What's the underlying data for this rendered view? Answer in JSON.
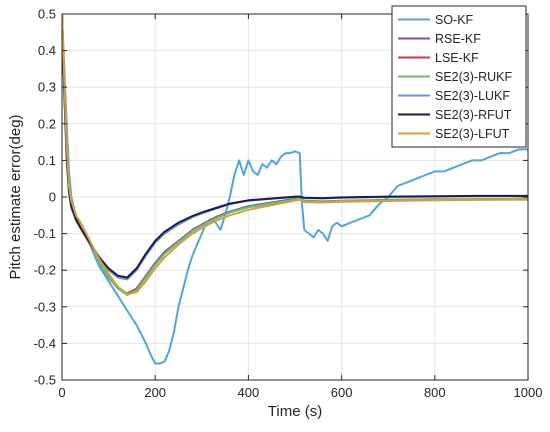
{
  "chart_data": {
    "type": "line",
    "title": "",
    "xlabel": "Time (s)",
    "ylabel": "Pitch estimate error(deg)",
    "xlim": [
      0,
      1000
    ],
    "ylim": [
      -0.5,
      0.5
    ],
    "xticks": [
      0,
      200,
      400,
      600,
      800,
      1000
    ],
    "yticks": [
      -0.5,
      -0.4,
      -0.3,
      -0.2,
      -0.1,
      0,
      0.1,
      0.2,
      0.3,
      0.4,
      0.5
    ],
    "xtick_labels": [
      "0",
      "200",
      "400",
      "600",
      "800",
      "1000"
    ],
    "ytick_labels": [
      "-0.5",
      "-0.4",
      "-0.3",
      "-0.2",
      "-0.1",
      "0",
      "0.1",
      "0.2",
      "0.3",
      "0.4",
      "0.5"
    ],
    "grid": true,
    "legend_position": "top-right",
    "series": [
      {
        "name": "SO-KF",
        "color": "#4DA6E0",
        "x": [
          0,
          5,
          10,
          15,
          20,
          30,
          40,
          50,
          60,
          70,
          80,
          100,
          120,
          140,
          160,
          180,
          190,
          200,
          210,
          220,
          230,
          240,
          250,
          260,
          270,
          280,
          290,
          300,
          310,
          320,
          330,
          340,
          350,
          360,
          370,
          380,
          390,
          400,
          410,
          420,
          430,
          440,
          450,
          460,
          470,
          480,
          490,
          500,
          510,
          515,
          520,
          530,
          540,
          550,
          560,
          570,
          580,
          590,
          600,
          620,
          640,
          660,
          680,
          700,
          720,
          740,
          760,
          780,
          800,
          820,
          840,
          860,
          880,
          900,
          920,
          940,
          960,
          980,
          990,
          1000
        ],
        "values": [
          0.5,
          0.35,
          0.2,
          0.07,
          0.0,
          -0.05,
          -0.08,
          -0.1,
          -0.13,
          -0.16,
          -0.19,
          -0.23,
          -0.27,
          -0.31,
          -0.35,
          -0.4,
          -0.43,
          -0.455,
          -0.455,
          -0.45,
          -0.42,
          -0.37,
          -0.3,
          -0.25,
          -0.2,
          -0.16,
          -0.13,
          -0.1,
          -0.07,
          -0.06,
          -0.07,
          -0.09,
          -0.05,
          0.0,
          0.06,
          0.1,
          0.06,
          0.1,
          0.07,
          0.06,
          0.09,
          0.08,
          0.1,
          0.09,
          0.11,
          0.12,
          0.12,
          0.125,
          0.12,
          -0.02,
          -0.09,
          -0.1,
          -0.11,
          -0.09,
          -0.1,
          -0.12,
          -0.08,
          -0.07,
          -0.08,
          -0.07,
          -0.06,
          -0.05,
          -0.02,
          0.0,
          0.03,
          0.04,
          0.05,
          0.06,
          0.07,
          0.07,
          0.08,
          0.09,
          0.1,
          0.1,
          0.11,
          0.12,
          0.12,
          0.13,
          0.13,
          0.13
        ]
      },
      {
        "name": "RSE-KF",
        "color": "#7E4FB0",
        "x": [
          0,
          5,
          10,
          15,
          20,
          30,
          40,
          60,
          80,
          100,
          120,
          140,
          160,
          180,
          200,
          220,
          250,
          280,
          300,
          330,
          360,
          400,
          450,
          500,
          510,
          520,
          560,
          600,
          700,
          800,
          900,
          1000
        ],
        "values": [
          0.5,
          0.3,
          0.12,
          0.02,
          -0.02,
          -0.06,
          -0.08,
          -0.13,
          -0.18,
          -0.22,
          -0.25,
          -0.265,
          -0.25,
          -0.215,
          -0.18,
          -0.15,
          -0.12,
          -0.09,
          -0.075,
          -0.055,
          -0.04,
          -0.025,
          -0.015,
          -0.005,
          -0.003,
          -0.01,
          -0.012,
          -0.01,
          -0.008,
          -0.006,
          -0.006,
          -0.005
        ]
      },
      {
        "name": "LSE-KF",
        "color": "#D6334F",
        "x": [
          0,
          5,
          10,
          15,
          20,
          30,
          40,
          60,
          80,
          100,
          120,
          140,
          160,
          180,
          200,
          220,
          250,
          280,
          300,
          330,
          360,
          400,
          450,
          500,
          510,
          520,
          560,
          600,
          700,
          800,
          900,
          1000
        ],
        "values": [
          0.5,
          0.31,
          0.13,
          0.025,
          -0.015,
          -0.055,
          -0.075,
          -0.125,
          -0.175,
          -0.215,
          -0.248,
          -0.263,
          -0.252,
          -0.22,
          -0.185,
          -0.155,
          -0.123,
          -0.093,
          -0.078,
          -0.058,
          -0.042,
          -0.028,
          -0.017,
          -0.007,
          -0.004,
          -0.011,
          -0.013,
          -0.011,
          -0.009,
          -0.007,
          -0.006,
          -0.005
        ]
      },
      {
        "name": "SE2(3)-RUKF",
        "color": "#5CC27A",
        "x": [
          0,
          5,
          10,
          15,
          20,
          30,
          40,
          60,
          80,
          100,
          120,
          140,
          160,
          180,
          200,
          220,
          250,
          280,
          300,
          330,
          360,
          400,
          450,
          500,
          510,
          520,
          560,
          600,
          700,
          800,
          900,
          1000
        ],
        "values": [
          0.5,
          0.3,
          0.12,
          0.02,
          -0.02,
          -0.06,
          -0.08,
          -0.13,
          -0.18,
          -0.22,
          -0.25,
          -0.268,
          -0.255,
          -0.22,
          -0.185,
          -0.155,
          -0.123,
          -0.093,
          -0.078,
          -0.058,
          -0.042,
          -0.028,
          -0.017,
          -0.007,
          -0.004,
          -0.011,
          -0.013,
          -0.011,
          -0.009,
          -0.007,
          -0.006,
          -0.005
        ]
      },
      {
        "name": "SE2(3)-LUKF",
        "color": "#6F8FD0",
        "x": [
          0,
          5,
          10,
          15,
          20,
          30,
          40,
          60,
          80,
          100,
          120,
          140,
          160,
          180,
          200,
          220,
          250,
          280,
          300,
          330,
          360,
          400,
          450,
          500,
          510,
          520,
          560,
          600,
          700,
          800,
          900,
          1000
        ],
        "values": [
          0.5,
          0.28,
          0.1,
          0.01,
          -0.03,
          -0.065,
          -0.085,
          -0.13,
          -0.17,
          -0.2,
          -0.22,
          -0.225,
          -0.2,
          -0.16,
          -0.125,
          -0.1,
          -0.075,
          -0.055,
          -0.045,
          -0.032,
          -0.02,
          -0.01,
          -0.005,
          0.0,
          0.0,
          -0.003,
          -0.004,
          -0.002,
          0.0,
          0.001,
          0.002,
          0.002
        ]
      },
      {
        "name": "SE2(3)-RFUT",
        "color": "#1F1A4D",
        "x": [
          0,
          5,
          10,
          15,
          20,
          30,
          40,
          60,
          80,
          100,
          120,
          140,
          160,
          180,
          200,
          220,
          250,
          280,
          300,
          330,
          360,
          400,
          450,
          500,
          510,
          520,
          560,
          600,
          700,
          800,
          900,
          1000
        ],
        "values": [
          0.5,
          0.29,
          0.11,
          0.015,
          -0.025,
          -0.06,
          -0.085,
          -0.125,
          -0.165,
          -0.195,
          -0.215,
          -0.22,
          -0.195,
          -0.155,
          -0.12,
          -0.095,
          -0.07,
          -0.052,
          -0.042,
          -0.03,
          -0.018,
          -0.009,
          -0.004,
          0.001,
          0.001,
          -0.002,
          -0.003,
          -0.001,
          0.001,
          0.002,
          0.003,
          0.003
        ]
      },
      {
        "name": "SE2(3)-LFUT",
        "color": "#D9A030",
        "x": [
          0,
          5,
          10,
          15,
          20,
          30,
          40,
          60,
          80,
          100,
          120,
          140,
          160,
          180,
          200,
          220,
          250,
          280,
          300,
          330,
          360,
          400,
          450,
          500,
          510,
          520,
          560,
          600,
          700,
          800,
          900,
          1000
        ],
        "values": [
          0.5,
          0.32,
          0.14,
          0.03,
          -0.01,
          -0.05,
          -0.07,
          -0.12,
          -0.17,
          -0.21,
          -0.245,
          -0.265,
          -0.26,
          -0.23,
          -0.195,
          -0.165,
          -0.13,
          -0.1,
          -0.085,
          -0.065,
          -0.05,
          -0.035,
          -0.022,
          -0.01,
          -0.007,
          -0.014,
          -0.015,
          -0.013,
          -0.011,
          -0.009,
          -0.008,
          -0.007
        ]
      }
    ]
  }
}
